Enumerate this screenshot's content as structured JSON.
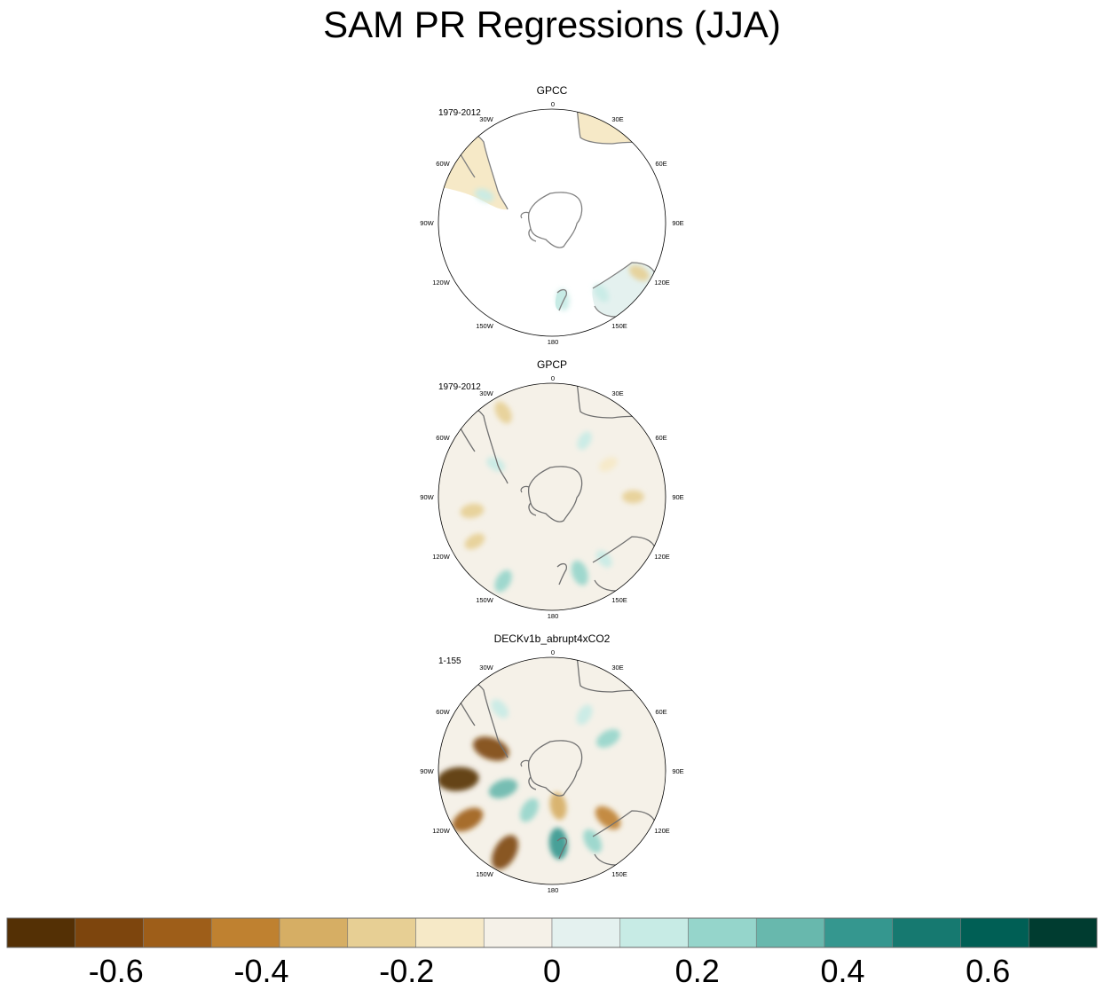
{
  "title": "SAM PR Regressions (JJA)",
  "chart_data": [
    {
      "type": "heatmap",
      "projection": "south-polar-stereographic",
      "title": "GPCC",
      "period": "1979-2012",
      "longitude_labels": [
        "0",
        "30E",
        "60E",
        "90E",
        "120E",
        "150E",
        "180",
        "150W",
        "120W",
        "90W",
        "60W",
        "30W"
      ],
      "field": "land-only precipitation regression",
      "anomalies": [
        {
          "lon": -62,
          "lat": -30,
          "value": -0.15
        },
        {
          "lon": -68,
          "lat": -45,
          "value": 0.15
        },
        {
          "lon": 120,
          "lat": -28,
          "value": -0.2
        },
        {
          "lon": 145,
          "lat": -37,
          "value": 0.15
        },
        {
          "lon": 172,
          "lat": -42,
          "value": 0.2
        }
      ]
    },
    {
      "type": "heatmap",
      "projection": "south-polar-stereographic",
      "title": "GPCP",
      "period": "1979-2012",
      "longitude_labels": [
        "0",
        "30E",
        "60E",
        "90E",
        "120E",
        "150E",
        "180",
        "150W",
        "120W",
        "90W",
        "60W",
        "30W"
      ],
      "field": "precipitation regression",
      "anomalies": [
        {
          "lon": -30,
          "lat": -30,
          "value": -0.25
        },
        {
          "lon": -60,
          "lat": -50,
          "value": 0.15
        },
        {
          "lon": -100,
          "lat": -40,
          "value": -0.25
        },
        {
          "lon": -120,
          "lat": -35,
          "value": -0.2
        },
        {
          "lon": -150,
          "lat": -30,
          "value": 0.25
        },
        {
          "lon": 160,
          "lat": -40,
          "value": 0.3
        },
        {
          "lon": 140,
          "lat": -40,
          "value": 0.15
        },
        {
          "lon": 90,
          "lat": -40,
          "value": -0.2
        },
        {
          "lon": 60,
          "lat": -50,
          "value": -0.15
        },
        {
          "lon": 30,
          "lat": -50,
          "value": 0.15
        }
      ]
    },
    {
      "type": "heatmap",
      "projection": "south-polar-stereographic",
      "title": "DECKv1b_abrupt4xCO2",
      "period": "1-155",
      "longitude_labels": [
        "0",
        "30E",
        "60E",
        "90E",
        "120E",
        "150E",
        "180",
        "150W",
        "120W",
        "90W",
        "60W",
        "30W"
      ],
      "field": "precipitation regression",
      "anomalies": [
        {
          "lon": -95,
          "lat": -32,
          "value": -0.7
        },
        {
          "lon": -120,
          "lat": -30,
          "value": -0.5
        },
        {
          "lon": -150,
          "lat": -32,
          "value": -0.6
        },
        {
          "lon": -70,
          "lat": -50,
          "value": -0.6
        },
        {
          "lon": -110,
          "lat": -58,
          "value": 0.4
        },
        {
          "lon": -150,
          "lat": -62,
          "value": 0.3
        },
        {
          "lon": 175,
          "lat": -45,
          "value": 0.45
        },
        {
          "lon": 150,
          "lat": -40,
          "value": 0.3
        },
        {
          "lon": 130,
          "lat": -45,
          "value": -0.4
        },
        {
          "lon": 170,
          "lat": -68,
          "value": -0.35
        },
        {
          "lon": 60,
          "lat": -50,
          "value": 0.3
        },
        {
          "lon": 30,
          "lat": -50,
          "value": 0.2
        },
        {
          "lon": -40,
          "lat": -40,
          "value": 0.2
        }
      ]
    }
  ],
  "colorbar": {
    "levels": [
      -0.75,
      -0.65,
      -0.55,
      -0.45,
      -0.35,
      -0.25,
      -0.15,
      -0.05,
      0.05,
      0.15,
      0.25,
      0.35,
      0.45,
      0.55,
      0.65,
      0.75
    ],
    "colors": [
      "#543005",
      "#7d450d",
      "#9e5e19",
      "#bf8130",
      "#d6ae64",
      "#e7cf94",
      "#f6e9c7",
      "#f5f1e8",
      "#e4f1ef",
      "#c7ebe5",
      "#95d5cb",
      "#68b8ad",
      "#35978f",
      "#167970",
      "#005f55",
      "#003c30"
    ],
    "labels": [
      "-0.6",
      "-0.4",
      "-0.2",
      "0",
      "0.2",
      "0.4",
      "0.6"
    ],
    "label_values": [
      -0.6,
      -0.4,
      -0.2,
      0,
      0.2,
      0.4,
      0.6
    ]
  }
}
